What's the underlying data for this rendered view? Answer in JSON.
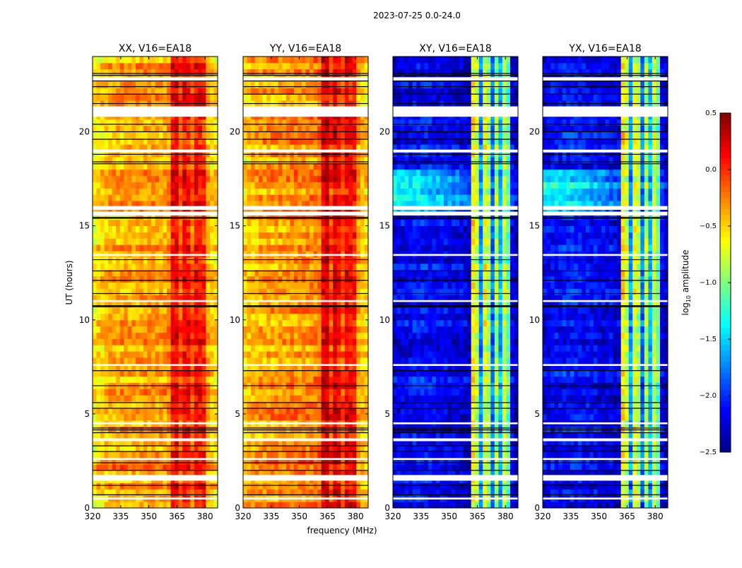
{
  "chart_data": {
    "type": "heatmap",
    "suptitle": "2023-07-25 0.0-24.0",
    "xlabel": "frequency (MHz)",
    "ylabel": "UT (hours)",
    "xlim": [
      320,
      386.7
    ],
    "ylim": [
      0,
      24
    ],
    "xticks": [
      "320",
      "335",
      "350",
      "365",
      "380"
    ],
    "xtick_values": [
      320,
      335,
      350,
      365,
      380
    ],
    "yticks": [
      "0",
      "5",
      "10",
      "15",
      "20"
    ],
    "ytick_values": [
      0,
      5,
      10,
      15,
      20
    ],
    "freq_bins_mhz": [
      321.0,
      323.1,
      325.2,
      327.3,
      329.4,
      331.5,
      333.5,
      335.6,
      337.7,
      339.8,
      341.9,
      344.0,
      346.0,
      348.1,
      350.2,
      352.3,
      354.4,
      356.5,
      358.5,
      360.6,
      362.7,
      364.8,
      366.9,
      369.0,
      371.0,
      373.1,
      375.2,
      377.3,
      379.4,
      381.5,
      383.5,
      385.6
    ],
    "time_step_hours": 0.3333,
    "flagged_hours": [
      [
        0.45,
        0.55
      ],
      [
        1.45,
        1.75
      ],
      [
        2.55,
        2.65
      ],
      [
        3.55,
        3.7
      ],
      [
        4.45,
        4.55
      ],
      [
        7.55,
        7.65
      ],
      [
        10.95,
        11.05
      ],
      [
        13.4,
        13.5
      ],
      [
        15.55,
        15.75
      ],
      [
        15.85,
        16.05
      ],
      [
        18.9,
        19.05
      ],
      [
        20.8,
        21.35
      ],
      [
        22.7,
        22.9
      ]
    ],
    "scan_boundaries_hours": [
      0.7,
      1.2,
      2.0,
      2.4,
      3.0,
      3.3,
      4.0,
      4.15,
      4.25,
      5.3,
      5.6,
      6.5,
      7.3,
      10.7,
      10.75,
      11.4,
      12.1,
      12.6,
      13.2,
      15.4,
      15.45,
      18.3,
      18.4,
      18.8,
      19.6,
      20.0,
      20.4,
      21.5,
      22.0,
      22.4,
      22.7,
      23.0,
      23.1
    ],
    "panels": [
      {
        "title": "XX, V16=EA18",
        "profile": [
          -0.6,
          -0.55,
          -0.5,
          -0.45,
          -0.42,
          -0.4,
          -0.4,
          -0.4,
          -0.38,
          -0.38,
          -0.38,
          -0.37,
          -0.37,
          -0.36,
          -0.36,
          -0.35,
          -0.35,
          -0.35,
          -0.35,
          -0.3,
          0.1,
          0.15,
          -0.1,
          0.1,
          0.05,
          -0.15,
          0.1,
          0.05,
          0.0,
          -0.4,
          -0.5,
          -0.55
        ],
        "enhanced_hours": [
          2.0,
          2.7
        ],
        "enhancement": 0.15
      },
      {
        "title": "YY, V16=EA18",
        "profile": [
          -0.5,
          -0.45,
          -0.42,
          -0.4,
          -0.38,
          -0.36,
          -0.35,
          -0.35,
          -0.34,
          -0.33,
          -0.33,
          -0.32,
          -0.3,
          -0.3,
          -0.3,
          -0.28,
          -0.28,
          -0.27,
          -0.25,
          -0.2,
          0.2,
          0.25,
          -0.05,
          0.2,
          0.1,
          -0.1,
          0.15,
          0.1,
          0.05,
          -0.35,
          -0.45,
          -0.5
        ],
        "enhanced_hours": [
          2.0,
          2.7
        ],
        "enhancement": 0.15
      },
      {
        "title": "XY, V16=EA18",
        "profile": [
          -2.2,
          -2.2,
          -2.15,
          -2.15,
          -2.15,
          -2.1,
          -2.1,
          -2.1,
          -2.1,
          -2.1,
          -2.15,
          -2.15,
          -2.15,
          -2.15,
          -2.2,
          -2.2,
          -2.2,
          -2.2,
          -2.25,
          -2.25,
          -0.6,
          -0.8,
          -1.7,
          -0.7,
          -0.9,
          -1.8,
          -0.9,
          -1.6,
          -0.8,
          -1.1,
          -2.2,
          -2.3
        ],
        "enhanced_hours": [
          15.5,
          18.0
        ],
        "enhancement": 0.8
      },
      {
        "title": "YX, V16=EA18",
        "profile": [
          -2.2,
          -2.2,
          -2.15,
          -2.15,
          -2.15,
          -2.1,
          -2.1,
          -2.1,
          -2.1,
          -2.1,
          -2.15,
          -2.15,
          -2.15,
          -2.15,
          -2.2,
          -2.2,
          -2.2,
          -2.2,
          -2.25,
          -2.25,
          -0.6,
          -0.8,
          -1.7,
          -0.7,
          -0.9,
          -1.8,
          -0.9,
          -1.6,
          -0.8,
          -1.1,
          -2.2,
          -2.3
        ],
        "enhanced_hours": [
          15.5,
          18.0
        ],
        "enhancement": 0.8
      }
    ],
    "colorbar": {
      "label": "log10 amplitude",
      "label_main": "log",
      "label_sub": "10",
      "label_rest": " amplitude",
      "range": [
        -2.5,
        0.5
      ],
      "ticks": [
        "0.5",
        "0.0",
        "−0.5",
        "−1.0",
        "−1.5",
        "−2.0",
        "−2.5"
      ],
      "tick_values": [
        0.5,
        0.0,
        -0.5,
        -1.0,
        -1.5,
        -2.0,
        -2.5
      ],
      "colormap": "jet"
    },
    "colors": {
      "flagged": "#ffffff",
      "boundary": "#000000"
    }
  }
}
